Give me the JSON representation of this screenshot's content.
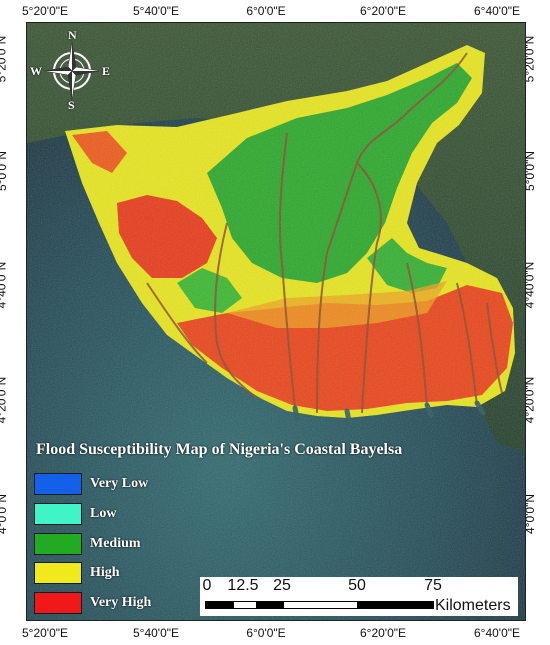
{
  "map": {
    "title": "Flood Susceptibility Map of Nigeria's Coastal Bayelsa",
    "longitude_labels": [
      "5°20'0\"E",
      "5°40'0\"E",
      "6°0'0\"E",
      "6°20'0\"E",
      "6°40'0\"E"
    ],
    "latitude_labels": [
      "5°20'0\"N",
      "5°0'0\"N",
      "4°40'0\"N",
      "4°20'0\"N",
      "4°0'0\"N"
    ]
  },
  "legend": {
    "items": [
      {
        "label": "Very Low",
        "color": "#1560e8"
      },
      {
        "label": "Low",
        "color": "#3ff5c8"
      },
      {
        "label": "Medium",
        "color": "#22aa22"
      },
      {
        "label": "High",
        "color": "#f0ea1c"
      },
      {
        "label": "Very High",
        "color": "#f01818"
      }
    ]
  },
  "scale_bar": {
    "ticks": [
      "0",
      "12.5",
      "25",
      "50",
      "75"
    ],
    "unit": "Kilometers"
  },
  "compass": {
    "north": "N",
    "south": "S",
    "east": "E",
    "west": "W"
  },
  "colors": {
    "sea": "#1f3f4c",
    "land_dark": "#2e4a2a",
    "high": "#f0ea1c",
    "medium": "#22aa22",
    "very_high": "#f01818"
  }
}
